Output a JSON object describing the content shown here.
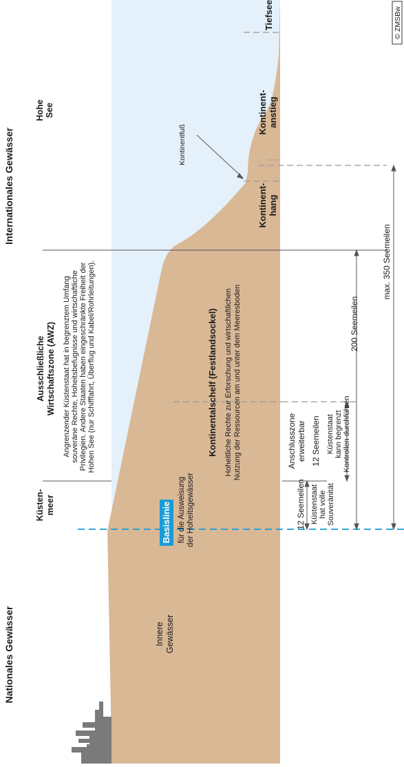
{
  "headings": {
    "national": "Nationales Gewässer",
    "international": "Internationales Gewässer"
  },
  "zones": {
    "kuestenmeer": [
      "Küsten-",
      "meer"
    ],
    "awz_title": [
      "Ausschließliche",
      "Wirtschaftszone (AWZ)"
    ],
    "awz_desc": [
      "Angrenzender Küstenstaat hat in begrenztem Umfang",
      "souveräne Rechte, Hoheitsbefugnisse und wirtschaftliche",
      "Privilegien. Andere Staaten haben eingeschränkte Freiheit der",
      "Hohen See (nur Schifffahrt, Überflug und Kabel/Rohrleitungen)."
    ],
    "hohe_see": [
      "Hohe",
      "See"
    ],
    "innere_gewaesser": [
      "Innere",
      "Gewässer"
    ]
  },
  "basislinie": {
    "label": "Basislinie",
    "desc": [
      "für die Ausweisung",
      "der Hoheitsgewässer"
    ]
  },
  "seabed": {
    "shelf_title": "Kontinentalschelf (Festlandsockel)",
    "shelf_desc": [
      "Hoheitliche Rechte zur Erforschung und wirtschaftlichen",
      "Nutzung der Ressourcen am und unter dem Meeresboden"
    ],
    "hang": [
      "Kontinent-",
      "hang"
    ],
    "anstieg": [
      "Kontinent-",
      "anstieg"
    ],
    "tiefsee": "Tiefsee",
    "fuss": "Kontinentfuß"
  },
  "measures": {
    "sm12_a": "12 Seemeilen",
    "souveraen": [
      "Küstenstaat",
      "hat volle",
      "Souveränität"
    ],
    "anschluss": [
      "Anschlusszone",
      "erweiterbar"
    ],
    "sm12_b": "12 Seemeilen",
    "kontrollen": [
      "Küstenstaat",
      "kann begrenzt",
      "Kontrollen durchführen"
    ],
    "sm200": "200 Seemeilen",
    "sm350": "max. 350 Seemeilen"
  },
  "copyright": "© ZMSBw",
  "colors": {
    "water": "#e4f1fb",
    "land": "#d9b896",
    "basislinie_line": "#1a9bd7",
    "basislinie_box": "#1a9bd7",
    "city": "#7a7a7a"
  }
}
